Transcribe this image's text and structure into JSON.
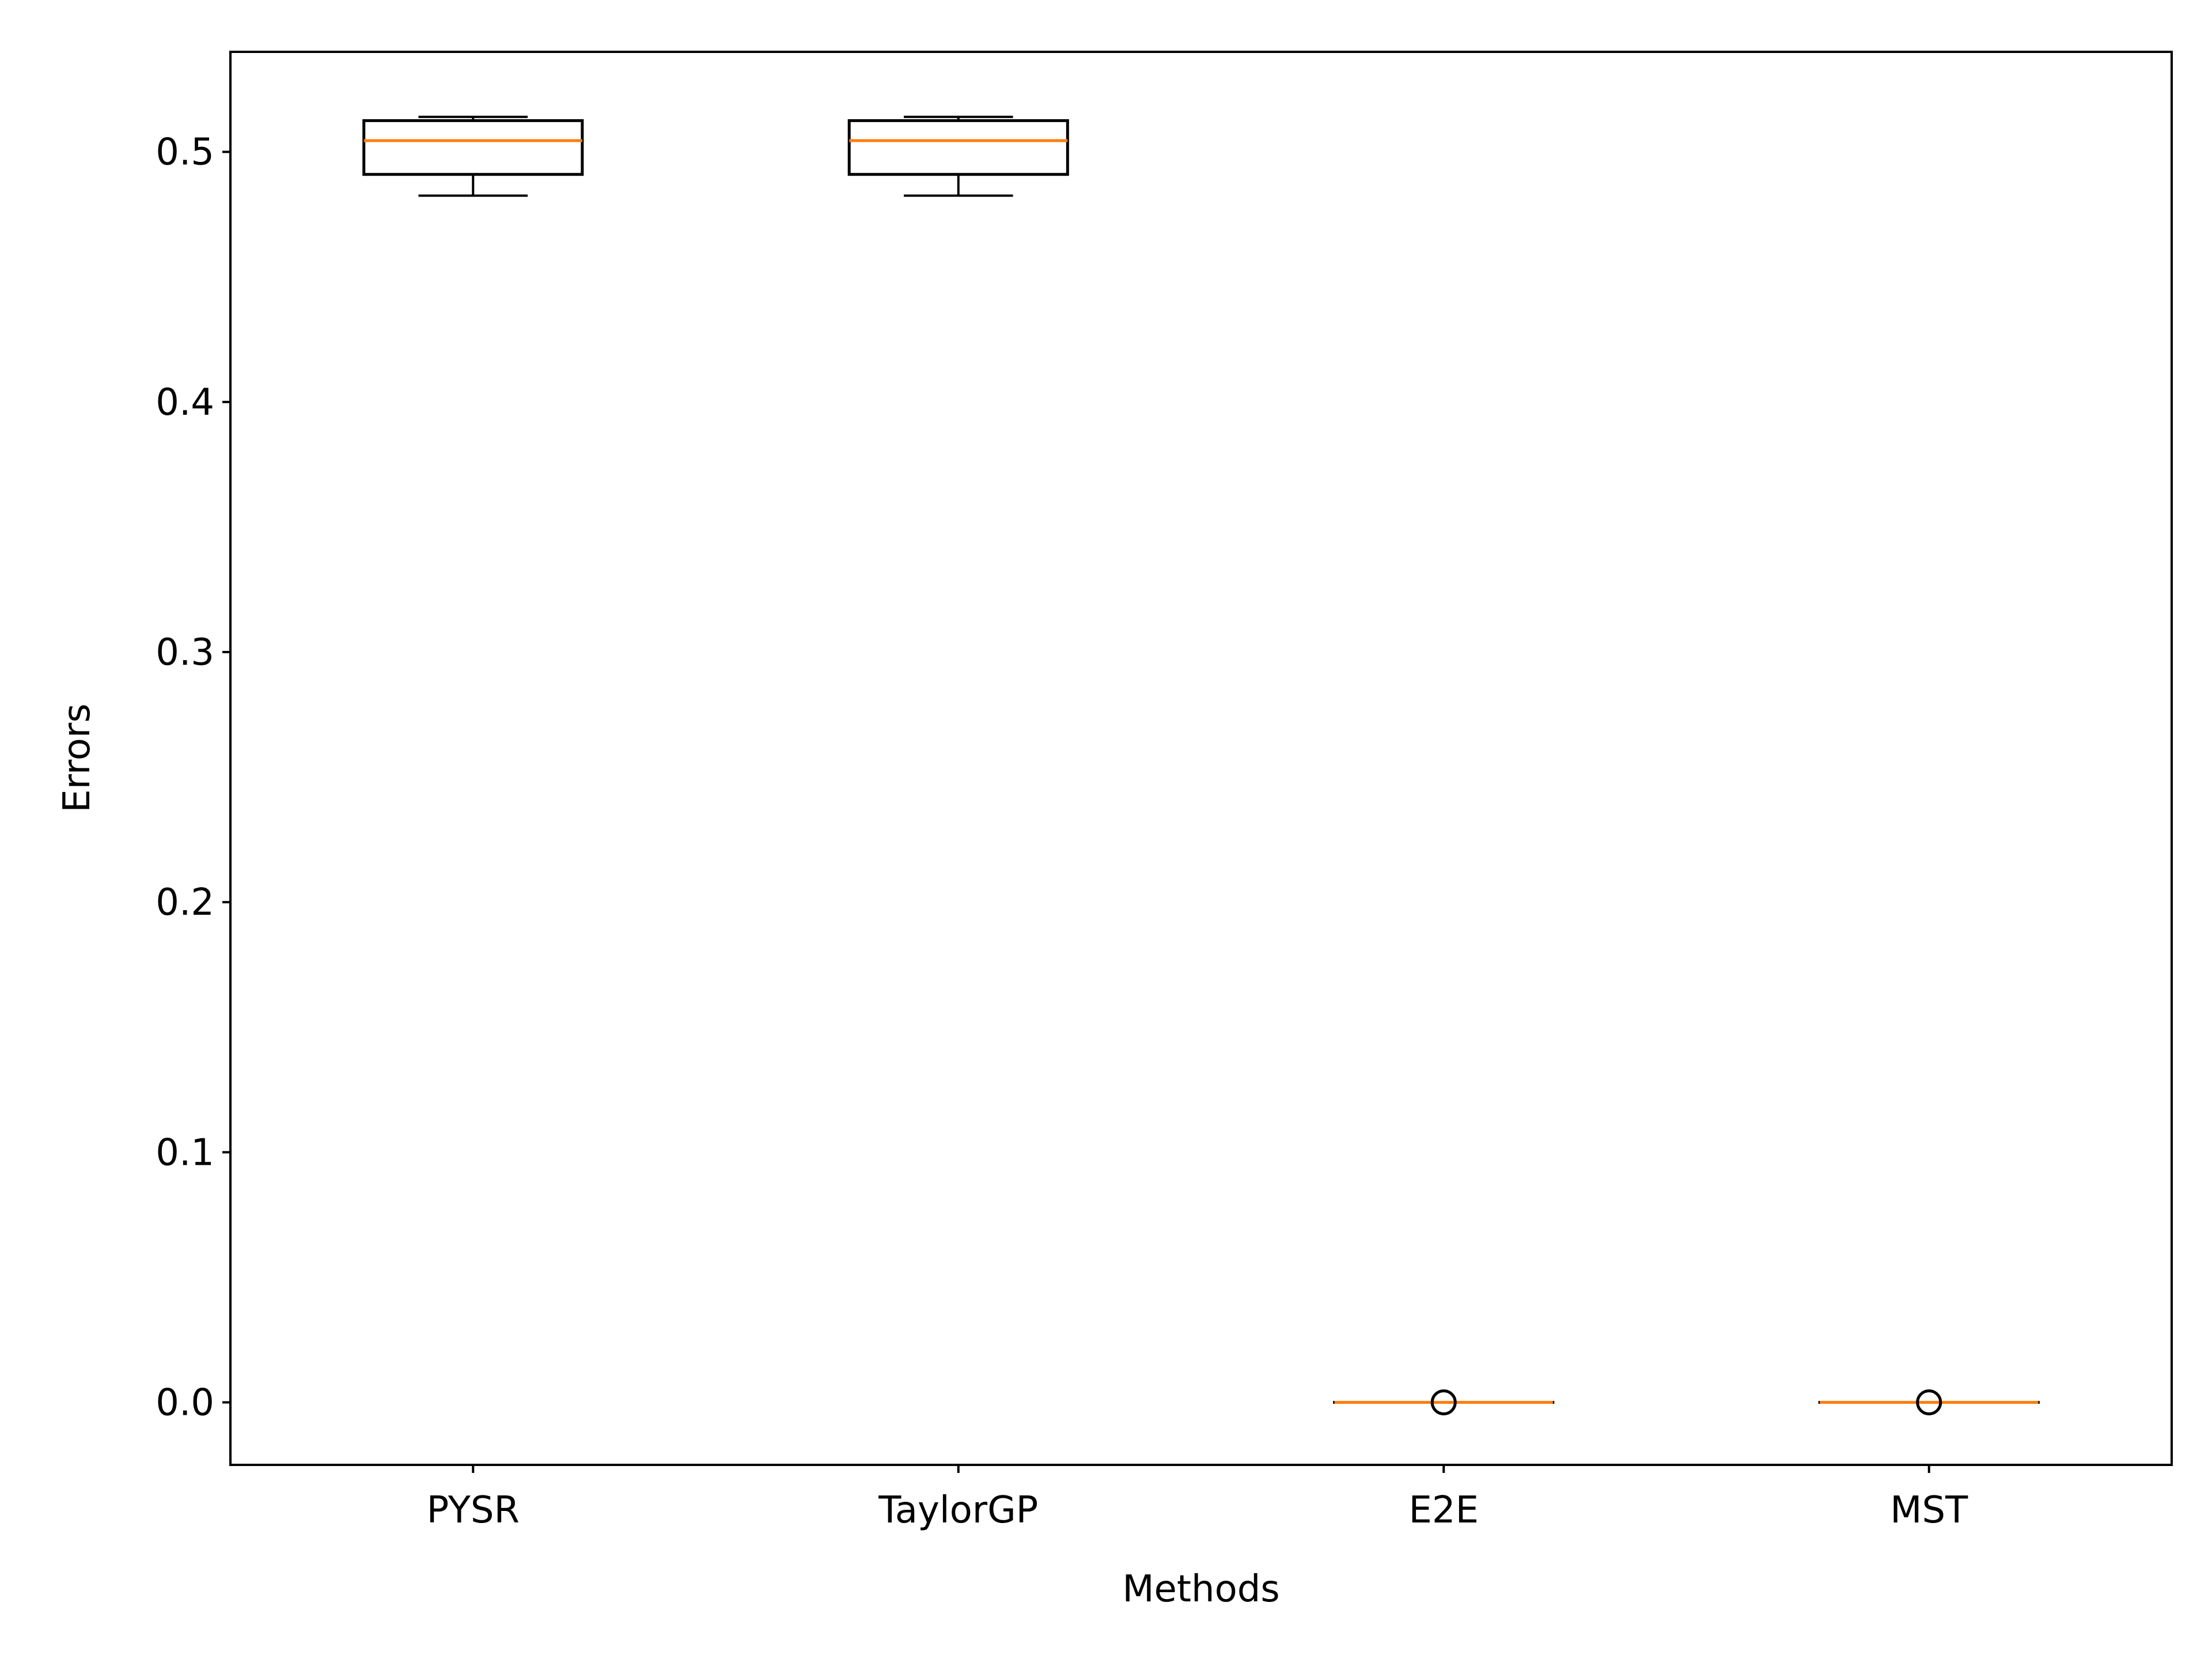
{
  "chart_data": {
    "type": "box",
    "title": "",
    "xlabel": "Methods",
    "ylabel": "Errors",
    "ylim": [
      -0.025,
      0.54
    ],
    "yticks": [
      "0.0",
      "0.1",
      "0.2",
      "0.3",
      "0.4",
      "0.5"
    ],
    "grid": false,
    "categories": [
      "PYSR",
      "TaylorGP",
      "E2E",
      "MST"
    ],
    "boxes": [
      {
        "name": "PYSR",
        "whisker_low": 0.4825,
        "q1": 0.491,
        "median": 0.5045,
        "q3": 0.5125,
        "whisker_high": 0.514,
        "outliers": []
      },
      {
        "name": "TaylorGP",
        "whisker_low": 0.4825,
        "q1": 0.491,
        "median": 0.5045,
        "q3": 0.5125,
        "whisker_high": 0.514,
        "outliers": []
      },
      {
        "name": "E2E",
        "whisker_low": 0.0,
        "q1": 0.0,
        "median": 0.0,
        "q3": 0.0,
        "whisker_high": 0.0,
        "outliers": [
          0.0
        ]
      },
      {
        "name": "MST",
        "whisker_low": 0.0,
        "q1": 0.0,
        "median": 0.0,
        "q3": 0.0,
        "whisker_high": 0.0,
        "outliers": [
          0.0
        ]
      }
    ],
    "colors": {
      "box": "#000000",
      "median": "#ff7f0e",
      "outlier": "#000000"
    }
  }
}
